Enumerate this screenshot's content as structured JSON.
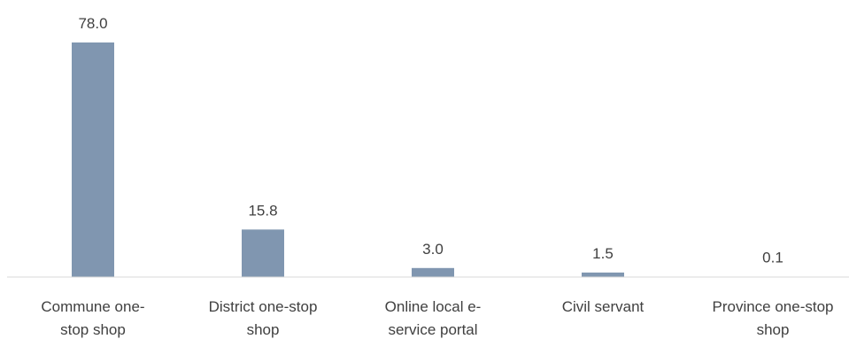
{
  "chart_data": {
    "type": "bar",
    "categories": [
      [
        "Commune one-",
        "stop shop"
      ],
      [
        "District one-stop",
        "shop"
      ],
      [
        "Online local e-",
        "service portal"
      ],
      [
        "Civil servant"
      ],
      [
        "Province one-stop",
        "shop"
      ]
    ],
    "values": [
      78.0,
      15.8,
      3.0,
      1.5,
      0.1
    ],
    "value_labels": [
      "78.0",
      "15.8",
      "3.0",
      "1.5",
      "0.1"
    ],
    "title": "",
    "xlabel": "",
    "ylabel": "",
    "ylim": [
      0,
      78
    ],
    "grid": false,
    "legend": "none",
    "bar_color": "#8096B0",
    "axis_color": "#D9D9D9",
    "text_color": "#404040"
  }
}
